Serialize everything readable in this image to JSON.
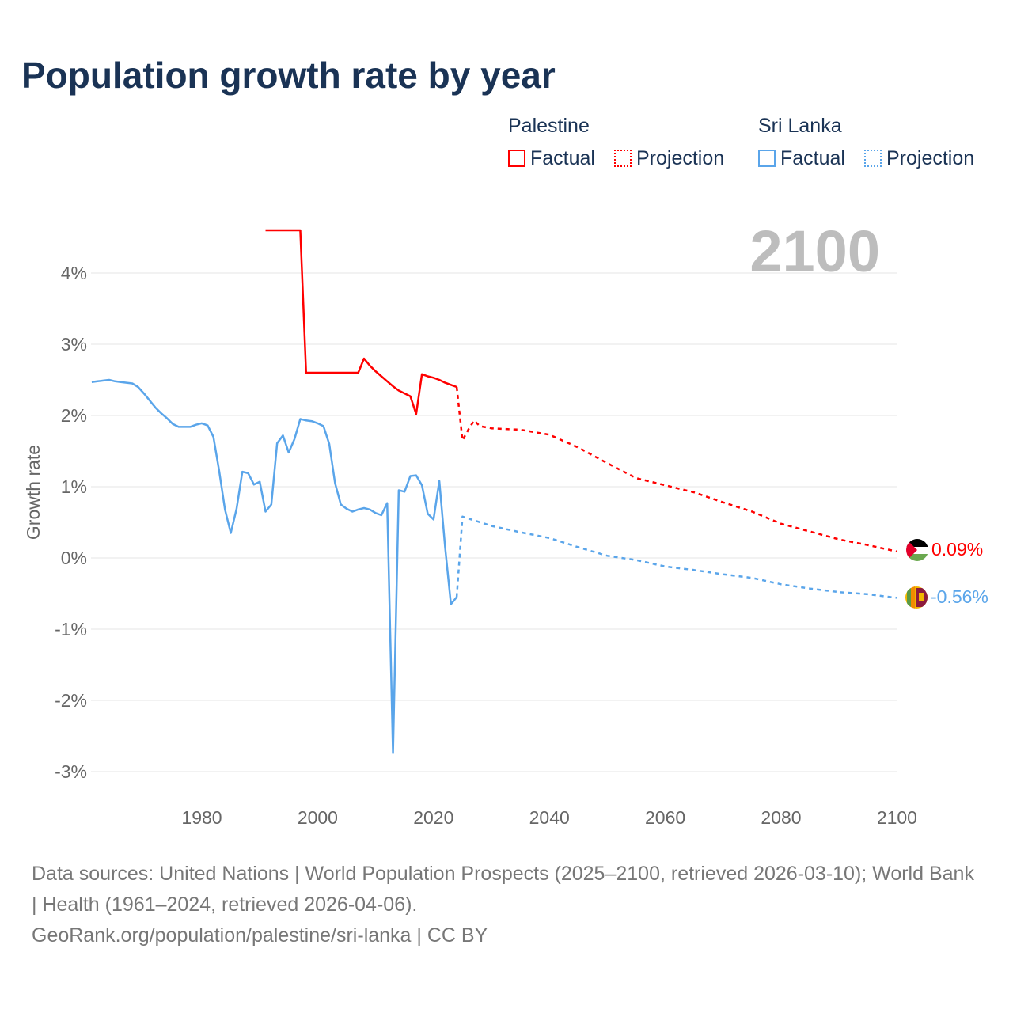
{
  "title": "Population growth rate by year",
  "year_label": "2100",
  "legend": {
    "palestine": "Palestine",
    "sri_lanka": "Sri Lanka",
    "factual": "Factual",
    "projection": "Projection"
  },
  "footer": {
    "sources": "Data sources: United Nations | World Population Prospects (2025–2100, retrieved 2026-03-10); World Bank | Health (1961–2024, retrieved 2026-04-06).",
    "link": "GeoRank.org/population/palestine/sri-lanka | CC BY"
  },
  "chart_data": {
    "type": "line",
    "ylabel": "Growth rate",
    "xlim": [
      1961,
      2100
    ],
    "ylim": [
      -3,
      4.6
    ],
    "xticks": [
      "1980",
      "2000",
      "2020",
      "2040",
      "2060",
      "2080",
      "2100"
    ],
    "yticks": [
      "4%",
      "3%",
      "2%",
      "1%",
      "0%",
      "-1%",
      "-2%",
      "-3%"
    ],
    "end_labels": {
      "palestine": "0.09%",
      "sri_lanka": "-0.56%"
    },
    "colors": {
      "palestine": "#ff0000",
      "sri_lanka": "#5aa5ea"
    },
    "series": [
      {
        "name": "Palestine",
        "kind": "factual",
        "key": "palestine",
        "x": [
          1991,
          1997,
          1998,
          2007,
          2008,
          2009,
          2010,
          2011,
          2012,
          2013,
          2014,
          2015,
          2016,
          2017,
          2018,
          2019,
          2020,
          2021,
          2022,
          2023,
          2024
        ],
        "y": [
          4.6,
          4.6,
          2.6,
          2.6,
          2.8,
          2.7,
          2.62,
          2.55,
          2.48,
          2.41,
          2.35,
          2.31,
          2.27,
          2.02,
          2.58,
          2.55,
          2.53,
          2.5,
          2.46,
          2.43,
          2.4
        ]
      },
      {
        "name": "Palestine",
        "kind": "projection",
        "key": "palestine",
        "x": [
          2024,
          2025,
          2026,
          2027,
          2028,
          2030,
          2035,
          2040,
          2045,
          2050,
          2055,
          2060,
          2065,
          2070,
          2075,
          2080,
          2085,
          2090,
          2095,
          2100
        ],
        "y": [
          2.4,
          1.65,
          1.8,
          1.93,
          1.85,
          1.82,
          1.8,
          1.73,
          1.55,
          1.33,
          1.12,
          1.02,
          0.92,
          0.78,
          0.65,
          0.48,
          0.37,
          0.26,
          0.18,
          0.09
        ]
      },
      {
        "name": "Sri Lanka",
        "kind": "factual",
        "key": "sri_lanka",
        "x": [
          1961,
          1962,
          1963,
          1964,
          1965,
          1966,
          1967,
          1968,
          1969,
          1970,
          1971,
          1972,
          1973,
          1974,
          1975,
          1976,
          1977,
          1978,
          1979,
          1980,
          1981,
          1982,
          1983,
          1984,
          1985,
          1986,
          1987,
          1988,
          1989,
          1990,
          1991,
          1992,
          1993,
          1994,
          1995,
          1996,
          1997,
          1998,
          1999,
          2000,
          2001,
          2002,
          2003,
          2004,
          2005,
          2006,
          2007,
          2008,
          2009,
          2010,
          2011,
          2012,
          2013,
          2014,
          2015,
          2016,
          2017,
          2018,
          2019,
          2020,
          2021,
          2022,
          2023,
          2024
        ],
        "y": [
          2.47,
          2.48,
          2.49,
          2.5,
          2.48,
          2.47,
          2.46,
          2.45,
          2.4,
          2.31,
          2.21,
          2.11,
          2.03,
          1.96,
          1.88,
          1.84,
          1.84,
          1.84,
          1.87,
          1.89,
          1.86,
          1.7,
          1.22,
          0.68,
          0.35,
          0.69,
          1.21,
          1.19,
          1.03,
          1.07,
          0.65,
          0.75,
          1.61,
          1.72,
          1.48,
          1.67,
          1.95,
          1.93,
          1.92,
          1.89,
          1.85,
          1.6,
          1.05,
          0.75,
          0.69,
          0.65,
          0.68,
          0.7,
          0.68,
          0.63,
          0.6,
          0.77,
          -2.74,
          0.95,
          0.93,
          1.15,
          1.16,
          1.02,
          0.62,
          0.54,
          1.08,
          0.15,
          -0.65,
          -0.55
        ]
      },
      {
        "name": "Sri Lanka",
        "kind": "projection",
        "key": "sri_lanka",
        "x": [
          2024,
          2025,
          2030,
          2035,
          2040,
          2045,
          2050,
          2055,
          2060,
          2065,
          2070,
          2075,
          2080,
          2085,
          2090,
          2095,
          2100
        ],
        "y": [
          -0.55,
          0.58,
          0.45,
          0.36,
          0.28,
          0.15,
          0.03,
          -0.03,
          -0.12,
          -0.17,
          -0.23,
          -0.28,
          -0.37,
          -0.43,
          -0.48,
          -0.51,
          -0.56
        ]
      }
    ]
  }
}
